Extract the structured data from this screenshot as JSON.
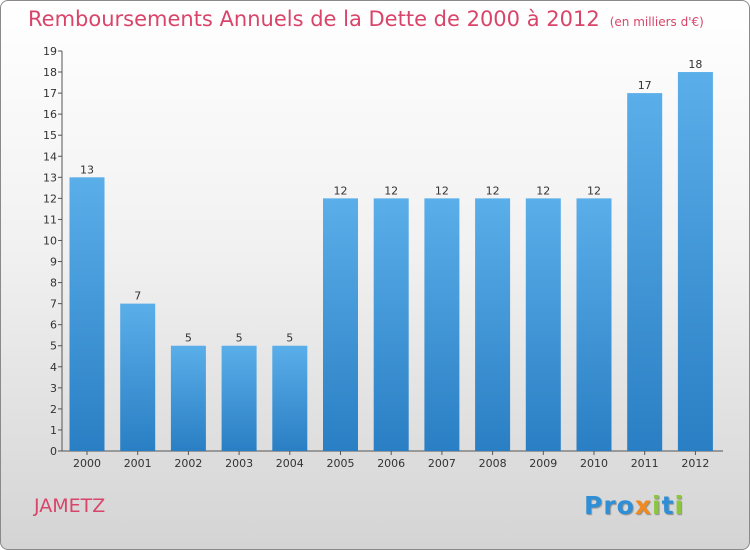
{
  "header": {
    "title": "Remboursements Annuels de la Dette de 2000 à 2012",
    "subtitle": "(en milliers d'€)"
  },
  "footer": {
    "city": "JAMETZ",
    "logo_text": "Proxiti",
    "logo_letters": [
      {
        "ch": "P",
        "color": "#2f8fd6"
      },
      {
        "ch": "r",
        "color": "#2f8fd6"
      },
      {
        "ch": "o",
        "color": "#2f8fd6"
      },
      {
        "ch": "x",
        "color": "#f08a1e"
      },
      {
        "ch": "i",
        "color": "#8cc63f"
      },
      {
        "ch": "t",
        "color": "#2f8fd6"
      },
      {
        "ch": "i",
        "color": "#8cc63f"
      }
    ]
  },
  "colors": {
    "title": "#d9456a",
    "bar_light": "#5aaee9",
    "bar_dark": "#2a7fc4"
  },
  "chart_data": {
    "type": "bar",
    "title": "Remboursements Annuels de la Dette de 2000 à 2012",
    "subtitle": "(en milliers d'€)",
    "categories": [
      "2000",
      "2001",
      "2002",
      "2003",
      "2004",
      "2005",
      "2006",
      "2007",
      "2008",
      "2009",
      "2010",
      "2011",
      "2012"
    ],
    "values": [
      13,
      7,
      5,
      5,
      5,
      12,
      12,
      12,
      12,
      12,
      12,
      17,
      18
    ],
    "ylim": [
      0,
      19
    ],
    "yticks": [
      0,
      1,
      2,
      3,
      4,
      5,
      6,
      7,
      8,
      9,
      10,
      11,
      12,
      13,
      14,
      15,
      16,
      17,
      18,
      19
    ],
    "grid": false,
    "legend": "none"
  }
}
